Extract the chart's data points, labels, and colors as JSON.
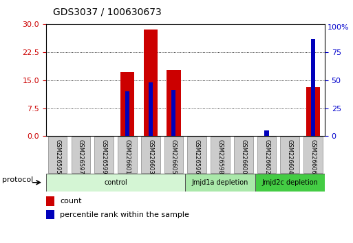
{
  "title": "GDS3037 / 100630673",
  "samples": [
    "GSM226595",
    "GSM226597",
    "GSM226599",
    "GSM226601",
    "GSM226603",
    "GSM226605",
    "GSM226596",
    "GSM226598",
    "GSM226600",
    "GSM226602",
    "GSM226604",
    "GSM226606"
  ],
  "count_values": [
    0,
    0,
    0,
    17.2,
    28.6,
    17.8,
    0,
    0,
    0,
    0,
    0,
    13.2
  ],
  "percentile_values": [
    0,
    0,
    0,
    40.0,
    48.0,
    41.5,
    0,
    0,
    0,
    5.0,
    0,
    87.0
  ],
  "ylim_left": [
    0,
    30
  ],
  "ylim_right": [
    0,
    100
  ],
  "yticks_left": [
    0,
    7.5,
    15,
    22.5,
    30
  ],
  "yticks_right": [
    0,
    25,
    50,
    75,
    100
  ],
  "left_axis_color": "#cc0000",
  "right_axis_color": "#0000cc",
  "bar_color_red": "#cc0000",
  "bar_color_blue": "#0000bb",
  "groups": [
    {
      "label": "control",
      "start": 0,
      "end": 6,
      "color": "#d4f5d4"
    },
    {
      "label": "Jmjd1a depletion",
      "start": 6,
      "end": 9,
      "color": "#aae8aa"
    },
    {
      "label": "Jmjd2c depletion",
      "start": 9,
      "end": 12,
      "color": "#44cc44"
    }
  ],
  "protocol_label": "protocol",
  "legend_count": "count",
  "legend_percentile": "percentile rank within the sample",
  "grid_color": "#000000",
  "bg_color": "#ffffff",
  "tick_bg_color": "#cccccc"
}
